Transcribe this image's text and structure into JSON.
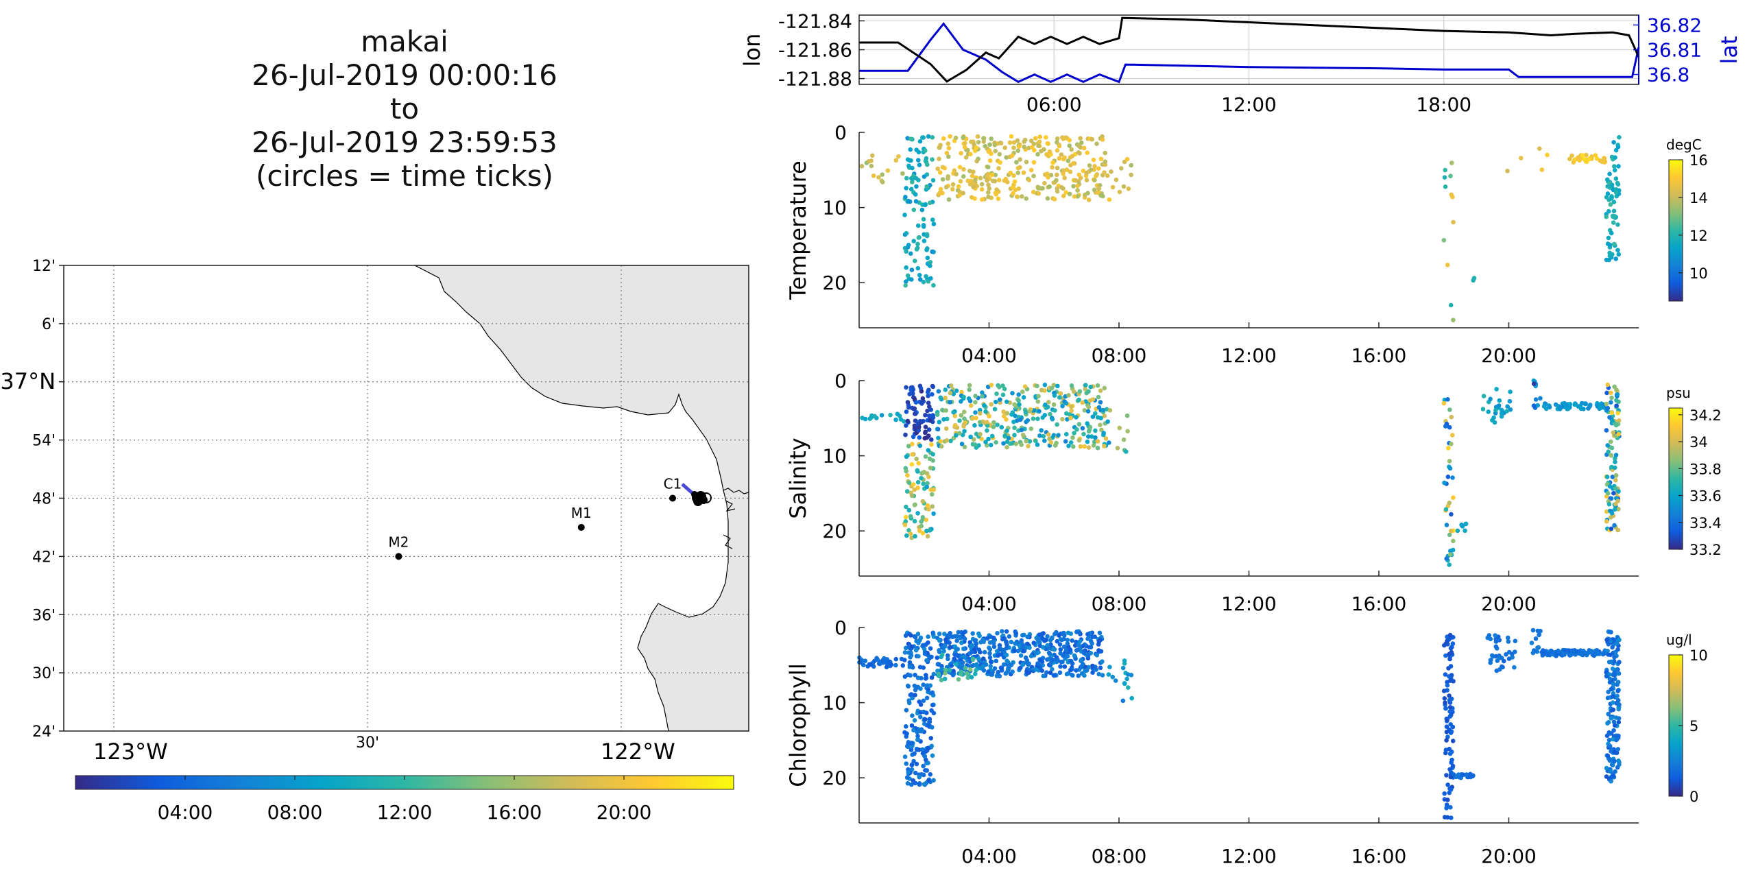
{
  "title": {
    "lines": [
      "makai",
      "26-Jul-2019 00:00:16",
      "to",
      "26-Jul-2019 23:59:53",
      "(circles = time ticks)"
    ]
  },
  "colors": {
    "track_lon": "#000000",
    "track_lat": "#0000cc",
    "land": "#e6e6e6",
    "parula": [
      "#352a87",
      "#0f5cdd",
      "#1481d6",
      "#06a4ca",
      "#2eb7a4",
      "#87bf77",
      "#d1bb59",
      "#fec832",
      "#f9fb0e"
    ]
  },
  "map": {
    "lat_ticks": [
      "12'",
      "6'",
      "37°N",
      "54'",
      "48'",
      "42'",
      "36'",
      "30'",
      "24'"
    ],
    "lon_ticks": [
      "123°W",
      "30'",
      "122°W"
    ],
    "moorings": [
      {
        "name": "M2",
        "lon": -122.39,
        "lat": 36.7
      },
      {
        "name": "M1",
        "lon": -122.03,
        "lat": 36.75
      },
      {
        "name": "C1",
        "lon": -121.85,
        "lat": 36.8
      }
    ],
    "colorbar_ticks": [
      "04:00",
      "08:00",
      "12:00",
      "16:00",
      "20:00"
    ]
  },
  "chart_data": [
    {
      "type": "line",
      "name": "position",
      "ylabel_left": "lon",
      "ylabel_right": "lat",
      "x_ticks": [
        "06:00",
        "12:00",
        "18:00"
      ],
      "xlim_hours": [
        0,
        24
      ],
      "lon_ticks": [
        "-121.84",
        "-121.86",
        "-121.88"
      ],
      "lat_ticks": [
        "36.82",
        "36.81",
        "36.8"
      ],
      "lon_ylim": [
        -121.884,
        -121.836
      ],
      "lat_ylim": [
        36.796,
        36.824
      ],
      "lon_series": {
        "x": [
          0,
          1.2,
          2.2,
          2.7,
          3.3,
          3.9,
          4.3,
          4.9,
          5.4,
          5.9,
          6.4,
          6.9,
          7.4,
          8.0,
          8.1,
          10,
          12,
          14,
          16,
          18,
          20,
          21.3,
          22,
          23.2,
          23.7,
          24
        ],
        "y": [
          -121.855,
          -121.855,
          -121.87,
          -121.882,
          -121.874,
          -121.862,
          -121.866,
          -121.851,
          -121.856,
          -121.851,
          -121.856,
          -121.851,
          -121.856,
          -121.852,
          -121.838,
          -121.839,
          -121.841,
          -121.843,
          -121.845,
          -121.847,
          -121.848,
          -121.85,
          -121.849,
          -121.848,
          -121.85,
          -121.865
        ]
      },
      "lat_series": {
        "x": [
          0,
          1.5,
          2.2,
          2.6,
          3.2,
          3.9,
          4.4,
          4.9,
          5.4,
          5.9,
          6.4,
          6.9,
          7.4,
          8.0,
          8.2,
          12,
          16,
          18,
          20,
          20.3,
          21,
          22,
          23.2,
          23.8,
          24
        ],
        "y": [
          36.8015,
          36.8015,
          36.814,
          36.8205,
          36.81,
          36.806,
          36.801,
          36.797,
          36.8,
          36.797,
          36.8,
          36.797,
          36.8,
          36.797,
          36.804,
          36.803,
          36.8025,
          36.802,
          36.802,
          36.799,
          36.799,
          36.799,
          36.799,
          36.799,
          36.811
        ]
      }
    },
    {
      "type": "scatter",
      "name": "temperature",
      "ylabel": "Temperature",
      "unit": "degC",
      "ylim": [
        0,
        26
      ],
      "y_reversed": true,
      "clim": [
        8.5,
        16
      ],
      "y_ticks": [
        0,
        10,
        20
      ],
      "x_ticks": [
        "04:00",
        "08:00",
        "12:00",
        "16:00",
        "20:00"
      ],
      "colorbar_ticks": [
        "16",
        "14",
        "12",
        "10"
      ],
      "clusters": [
        {
          "t": [
            0.0,
            1.4
          ],
          "z": [
            2,
            7
          ],
          "v": [
            13.2,
            14.8
          ],
          "n": 15
        },
        {
          "t": [
            1.4,
            2.3
          ],
          "z": [
            0.5,
            20.5
          ],
          "v": [
            10.8,
            12.4
          ],
          "n": 110
        },
        {
          "t": [
            2.4,
            7.6
          ],
          "z": [
            0.5,
            9
          ],
          "v": [
            13.5,
            15.2
          ],
          "n": 330
        },
        {
          "t": [
            7.5,
            8.4
          ],
          "z": [
            3.5,
            10
          ],
          "v": [
            13.5,
            15.2
          ],
          "n": 14
        },
        {
          "t": [
            18.0,
            18.3
          ],
          "z": [
            3,
            25
          ],
          "v": [
            11.8,
            15.2
          ],
          "n": 12
        },
        {
          "t": [
            18.9,
            19.0
          ],
          "z": [
            19,
            20
          ],
          "v": [
            11.5,
            12
          ],
          "n": 2
        },
        {
          "t": [
            19.3,
            21.2
          ],
          "z": [
            0.5,
            6
          ],
          "v": [
            14,
            15.2
          ],
          "n": 5
        },
        {
          "t": [
            21.8,
            23.0
          ],
          "z": [
            3,
            4
          ],
          "v": [
            14.5,
            15.5
          ],
          "n": 30
        },
        {
          "t": [
            23.0,
            23.4
          ],
          "z": [
            0.5,
            17
          ],
          "v": [
            11,
            12.5
          ],
          "n": 70
        }
      ]
    },
    {
      "type": "scatter",
      "name": "salinity",
      "ylabel": "Salinity",
      "unit": "psu",
      "ylim": [
        0,
        26
      ],
      "y_reversed": true,
      "clim": [
        33.2,
        34.25
      ],
      "y_ticks": [
        0,
        10,
        20
      ],
      "x_ticks": [
        "04:00",
        "08:00",
        "12:00",
        "16:00",
        "20:00"
      ],
      "colorbar_ticks": [
        "34.2",
        "34",
        "33.8",
        "33.6",
        "33.4",
        "33.2"
      ],
      "clusters": [
        {
          "t": [
            0.0,
            1.4
          ],
          "z": [
            4,
            5.5
          ],
          "v": [
            33.55,
            33.7
          ],
          "n": 15
        },
        {
          "t": [
            1.4,
            2.3
          ],
          "z": [
            0.5,
            8
          ],
          "v": [
            33.2,
            33.35
          ],
          "n": 80
        },
        {
          "t": [
            1.4,
            2.3
          ],
          "z": [
            8,
            21
          ],
          "v": [
            33.55,
            34.15
          ],
          "n": 90
        },
        {
          "t": [
            2.4,
            7.6
          ],
          "z": [
            0.5,
            9
          ],
          "v": [
            33.45,
            34.1
          ],
          "n": 360
        },
        {
          "t": [
            7.5,
            8.4
          ],
          "z": [
            3.5,
            10
          ],
          "v": [
            33.5,
            34.1
          ],
          "n": 14
        },
        {
          "t": [
            18.0,
            18.3
          ],
          "z": [
            2,
            25
          ],
          "v": [
            33.3,
            34.2
          ],
          "n": 40
        },
        {
          "t": [
            18.3,
            18.9
          ],
          "z": [
            19,
            20
          ],
          "v": [
            33.5,
            33.65
          ],
          "n": 6
        },
        {
          "t": [
            19.2,
            20.1
          ],
          "z": [
            1,
            6
          ],
          "v": [
            33.5,
            33.7
          ],
          "n": 25
        },
        {
          "t": [
            20.7,
            21.0
          ],
          "z": [
            0,
            4
          ],
          "v": [
            33.2,
            33.6
          ],
          "n": 10
        },
        {
          "t": [
            21.0,
            23.0
          ],
          "z": [
            3,
            3.8
          ],
          "v": [
            33.5,
            33.6
          ],
          "n": 50
        },
        {
          "t": [
            23.0,
            23.4
          ],
          "z": [
            0.5,
            20
          ],
          "v": [
            33.3,
            34.15
          ],
          "n": 110
        }
      ]
    },
    {
      "type": "scatter",
      "name": "chlorophyll",
      "ylabel": "Chlorophyll",
      "unit": "ug/l",
      "ylim": [
        0,
        26
      ],
      "y_reversed": true,
      "clim": [
        0,
        10
      ],
      "y_ticks": [
        0,
        10,
        20
      ],
      "x_ticks": [
        "04:00",
        "08:00",
        "12:00",
        "16:00",
        "20:00"
      ],
      "colorbar_ticks": [
        "10",
        "5",
        "0"
      ],
      "clusters": [
        {
          "t": [
            0.0,
            1.4
          ],
          "z": [
            4,
            5.3
          ],
          "v": [
            1.2,
            2.2
          ],
          "n": 40
        },
        {
          "t": [
            1.4,
            2.3
          ],
          "z": [
            0.5,
            21
          ],
          "v": [
            1.0,
            2.8
          ],
          "n": 200
        },
        {
          "t": [
            2.4,
            7.5
          ],
          "z": [
            0.5,
            6.5
          ],
          "v": [
            1.0,
            3.0
          ],
          "n": 520
        },
        {
          "t": [
            2.4,
            3.6
          ],
          "z": [
            3.5,
            7
          ],
          "v": [
            4,
            6.5
          ],
          "n": 25
        },
        {
          "t": [
            7.5,
            8.4
          ],
          "z": [
            4,
            10
          ],
          "v": [
            2,
            4.5
          ],
          "n": 16
        },
        {
          "t": [
            18.0,
            18.3
          ],
          "z": [
            0.5,
            25.5
          ],
          "v": [
            0.8,
            1.8
          ],
          "n": 90
        },
        {
          "t": [
            18.3,
            18.9
          ],
          "z": [
            19.5,
            20
          ],
          "v": [
            1.5,
            2.2
          ],
          "n": 20
        },
        {
          "t": [
            19.3,
            20.2
          ],
          "z": [
            1,
            5.8
          ],
          "v": [
            1.5,
            2.5
          ],
          "n": 35
        },
        {
          "t": [
            20.7,
            21.0
          ],
          "z": [
            0,
            3.5
          ],
          "v": [
            1.5,
            2.5
          ],
          "n": 12
        },
        {
          "t": [
            21.0,
            23.0
          ],
          "z": [
            3,
            3.8
          ],
          "v": [
            1.5,
            2.3
          ],
          "n": 90
        },
        {
          "t": [
            23.0,
            23.4
          ],
          "z": [
            0.5,
            20.5
          ],
          "v": [
            1.0,
            3.0
          ],
          "n": 160
        }
      ]
    }
  ]
}
